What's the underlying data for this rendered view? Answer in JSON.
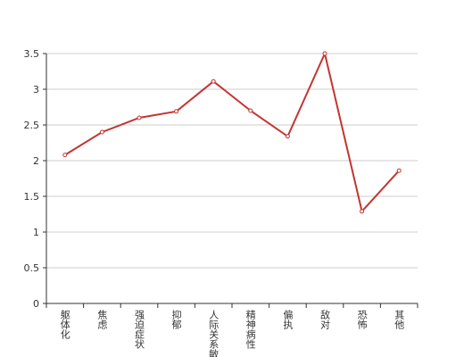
{
  "chart_data": {
    "type": "line",
    "categories": [
      "躯体化",
      "焦虑",
      "强迫症状",
      "抑郁",
      "人际关系敏感",
      "精神病性",
      "偏执",
      "敌对",
      "恐怖",
      "其他"
    ],
    "values": [
      2.08,
      2.4,
      2.6,
      2.69,
      3.11,
      2.7,
      2.34,
      3.5,
      1.29,
      1.86
    ],
    "color": "#c23531",
    "ylim": [
      0,
      3.5
    ],
    "yticks": [
      0,
      0.5,
      1,
      1.5,
      2,
      2.5,
      3,
      3.5
    ],
    "grid": true
  }
}
